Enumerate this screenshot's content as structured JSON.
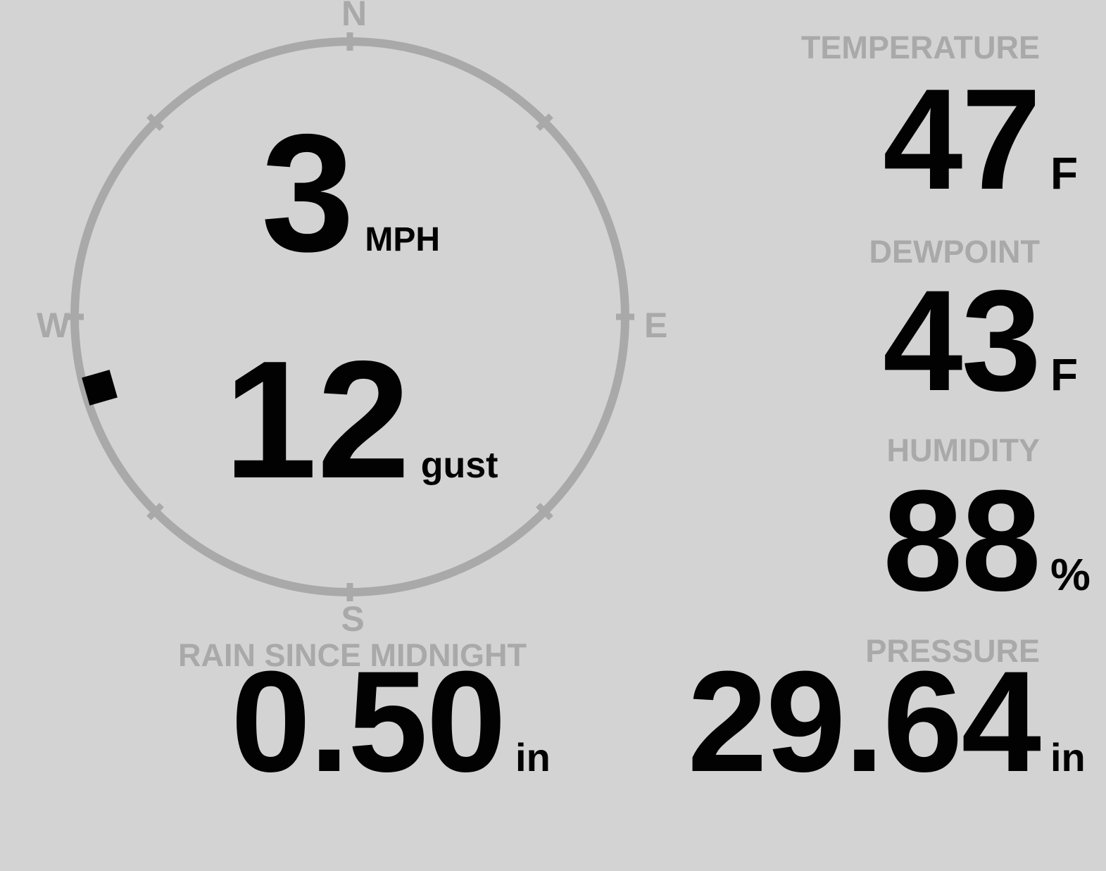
{
  "display": {
    "background_color": "#d3d3d3",
    "muted_color": "#a9a9a9",
    "value_color": "#020202"
  },
  "wind": {
    "speed": "3",
    "speed_unit": "MPH",
    "gust": "12",
    "gust_unit": "gust",
    "direction": "WSW",
    "direction_deg_approx": 254,
    "compass": {
      "north": "N",
      "east": "E",
      "south": "S",
      "west": "W"
    }
  },
  "metrics": [
    {
      "id": "temperature",
      "label": "TEMPERATURE",
      "value": "47",
      "unit": "F"
    },
    {
      "id": "dewpoint",
      "label": "DEWPOINT",
      "value": "43",
      "unit": "F"
    },
    {
      "id": "humidity",
      "label": "HUMIDITY",
      "value": "88",
      "unit": "%"
    },
    {
      "id": "rain_since_midnight",
      "label": "RAIN SINCE MIDNIGHT",
      "value": "0.50",
      "unit": "in"
    },
    {
      "id": "pressure",
      "label": "PRESSURE",
      "value": "29.64",
      "unit": "in"
    }
  ]
}
